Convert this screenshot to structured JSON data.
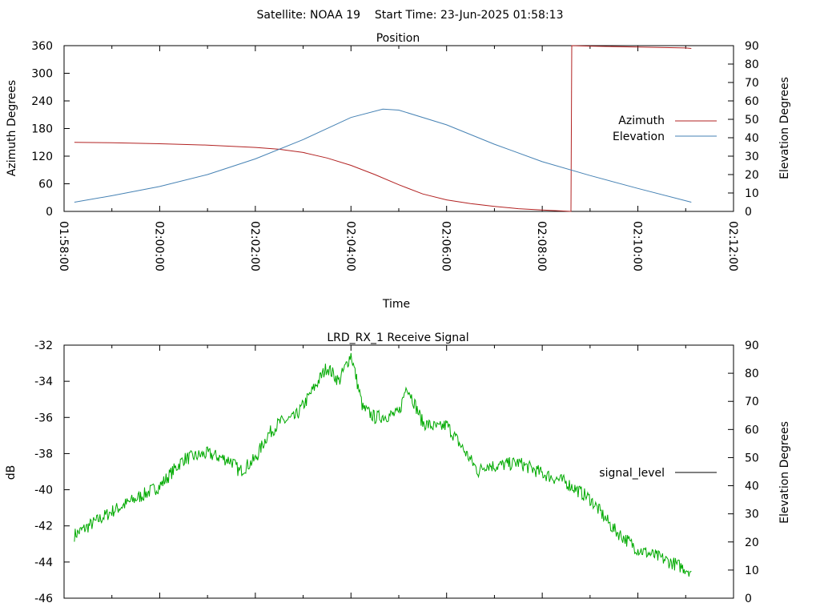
{
  "suptitle": "Satellite: NOAA 19    Start Time: 23-Jun-2025 01:58:13",
  "chart_data": [
    {
      "type": "line",
      "title": "Position",
      "xlabel": "Time",
      "ylabel": "Azimuth Degrees",
      "y2label": "Elevation Degrees",
      "xlim": [
        "01:58:00",
        "02:12:00"
      ],
      "xticks": [
        "01:58:00",
        "02:00:00",
        "02:02:00",
        "02:04:00",
        "02:06:00",
        "02:08:00",
        "02:10:00",
        "02:12:00"
      ],
      "ylim": [
        0,
        360
      ],
      "yticks": [
        "0",
        "60",
        "120",
        "180",
        "240",
        "300",
        "360"
      ],
      "y2lim": [
        0,
        90
      ],
      "y2ticks": [
        "0",
        "10",
        "20",
        "30",
        "40",
        "50",
        "60",
        "70",
        "80",
        "90"
      ],
      "legend_position": "right",
      "series": [
        {
          "name": "Azimuth",
          "axis": "left",
          "color": "#b22222",
          "x": [
            "01:58:13",
            "01:59:00",
            "02:00:00",
            "02:01:00",
            "02:02:00",
            "02:02:30",
            "02:03:00",
            "02:03:30",
            "02:04:00",
            "02:04:30",
            "02:05:00",
            "02:05:30",
            "02:06:00",
            "02:06:30",
            "02:07:00",
            "02:07:30",
            "02:08:00",
            "02:08:24",
            "02:08:36",
            "02:08:37",
            "02:09:00",
            "02:10:00",
            "02:11:00",
            "02:11:07"
          ],
          "y": [
            150,
            149,
            147,
            144,
            139,
            135,
            128,
            116,
            100,
            80,
            58,
            38,
            25,
            17,
            11,
            6,
            3,
            1,
            0,
            360,
            359,
            357,
            355,
            354
          ]
        },
        {
          "name": "Elevation",
          "axis": "right",
          "color": "#4682b4",
          "x": [
            "01:58:13",
            "01:59:00",
            "02:00:00",
            "02:01:00",
            "02:02:00",
            "02:03:00",
            "02:04:00",
            "02:04:40",
            "02:05:00",
            "02:06:00",
            "02:07:00",
            "02:08:00",
            "02:09:00",
            "02:10:00",
            "02:11:07"
          ],
          "y": [
            5,
            8.5,
            13.5,
            20,
            28.5,
            39,
            51,
            55.5,
            55,
            47,
            36.5,
            27,
            19.5,
            12.5,
            5
          ]
        }
      ]
    },
    {
      "type": "line",
      "title": "LRD_RX_1 Receive Signal",
      "ylabel": "dB",
      "y2label": "Elevation Degrees",
      "xlim": [
        "01:58:00",
        "02:12:00"
      ],
      "ylim": [
        -46,
        -32
      ],
      "yticks": [
        "-32",
        "-34",
        "-36",
        "-38",
        "-40",
        "-42",
        "-44",
        "-46"
      ],
      "y2lim": [
        0,
        90
      ],
      "y2ticks": [
        "0",
        "10",
        "20",
        "30",
        "40",
        "50",
        "60",
        "70",
        "80",
        "90"
      ],
      "legend_position": "right",
      "series": [
        {
          "name": "signal_level",
          "axis": "left",
          "color": "#00aa00",
          "legend_color": "#000000",
          "x": [
            "01:58:13",
            "01:59:00",
            "02:00:00",
            "02:00:30",
            "02:01:00",
            "02:01:30",
            "02:01:40",
            "02:02:00",
            "02:02:15",
            "02:02:30",
            "02:02:50",
            "02:03:05",
            "02:03:30",
            "02:03:45",
            "02:04:00",
            "02:04:15",
            "02:04:30",
            "02:05:00",
            "02:05:10",
            "02:05:30",
            "02:05:50",
            "02:06:00",
            "02:06:40",
            "02:06:50",
            "02:07:00",
            "02:07:30",
            "02:08:00",
            "02:08:30",
            "02:09:00",
            "02:09:30",
            "02:10:00",
            "02:10:30",
            "02:11:07"
          ],
          "y": [
            -42.5,
            -41.2,
            -39.8,
            -38.3,
            -38.0,
            -38.4,
            -39.0,
            -38.3,
            -37.0,
            -36.3,
            -36.0,
            -35.0,
            -33.2,
            -34.0,
            -32.5,
            -35.5,
            -36.0,
            -35.8,
            -34.2,
            -36.3,
            -36.6,
            -36.4,
            -39.0,
            -38.6,
            -38.7,
            -38.5,
            -39.1,
            -39.6,
            -40.5,
            -42.2,
            -43.3,
            -43.8,
            -44.5
          ]
        }
      ]
    }
  ]
}
